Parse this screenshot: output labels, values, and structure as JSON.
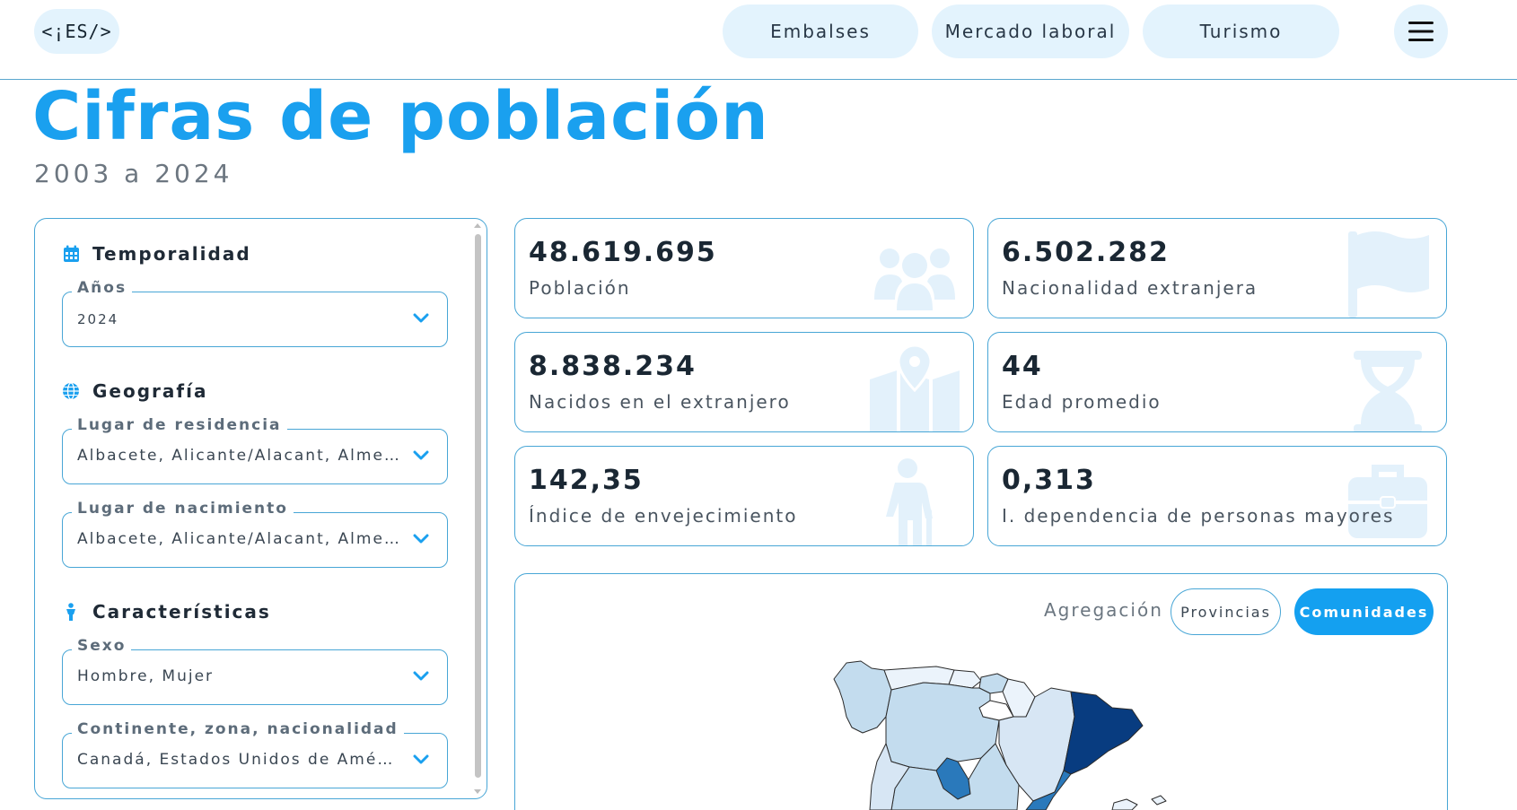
{
  "header": {
    "logo": "<¡ES/>",
    "nav": [
      {
        "label": "Embalses"
      },
      {
        "label": "Mercado laboral"
      },
      {
        "label": "Turismo"
      }
    ],
    "menu_icon": "hamburger-icon"
  },
  "page": {
    "title": "Cifras de población",
    "subtitle": "2003 a 2024"
  },
  "filters": {
    "temporalidad": {
      "heading": "Temporalidad",
      "icon": "calendar-icon",
      "fields": [
        {
          "label": "Años",
          "value": "2024"
        }
      ]
    },
    "geografia": {
      "heading": "Geografía",
      "icon": "globe-icon",
      "fields": [
        {
          "label": "Lugar de residencia",
          "value": "Albacete, Alicante/Alacant, Almería, Araba/Álava"
        },
        {
          "label": "Lugar de nacimiento",
          "value": "Albacete, Alicante/Alacant, Almería, Araba/Álava"
        }
      ]
    },
    "caracteristicas": {
      "heading": "Características",
      "icon": "person-icon",
      "fields": [
        {
          "label": "Sexo",
          "value": "Hombre, Mujer"
        },
        {
          "label": "Continente, zona, nacionalidad",
          "value": "Canadá, Estados Unidos de América"
        }
      ]
    }
  },
  "kpis": [
    {
      "value": "48.619.695",
      "label": "Población",
      "icon": "people-icon"
    },
    {
      "value": "6.502.282",
      "label": "Nacionalidad extranjera",
      "icon": "flag-icon"
    },
    {
      "value": "8.838.234",
      "label": "Nacidos en el extranjero",
      "icon": "map-pin-icon"
    },
    {
      "value": "44",
      "label": "Edad promedio",
      "icon": "hourglass-icon"
    },
    {
      "value": "142,35",
      "label": "Índice de envejecimiento",
      "icon": "elderly-person-icon"
    },
    {
      "value": "0,313",
      "label": "I. dependencia de personas mayores",
      "icon": "briefcase-icon"
    }
  ],
  "map": {
    "aggregation_label": "Agregación",
    "options": [
      {
        "label": "Provincias",
        "selected": false
      },
      {
        "label": "Comunidades",
        "selected": true
      }
    ]
  },
  "colors": {
    "accent": "#14a0f0",
    "pill_bg": "#e3f3fd",
    "border": "#48a6d6",
    "icon_fill": "#e3f1fb",
    "map_dark": "#083c80",
    "map_mid": "#2a79bb",
    "map_light": "#c3dcee",
    "map_lighter": "#d7e6f4",
    "map_lightest": "#ebf3fb"
  }
}
